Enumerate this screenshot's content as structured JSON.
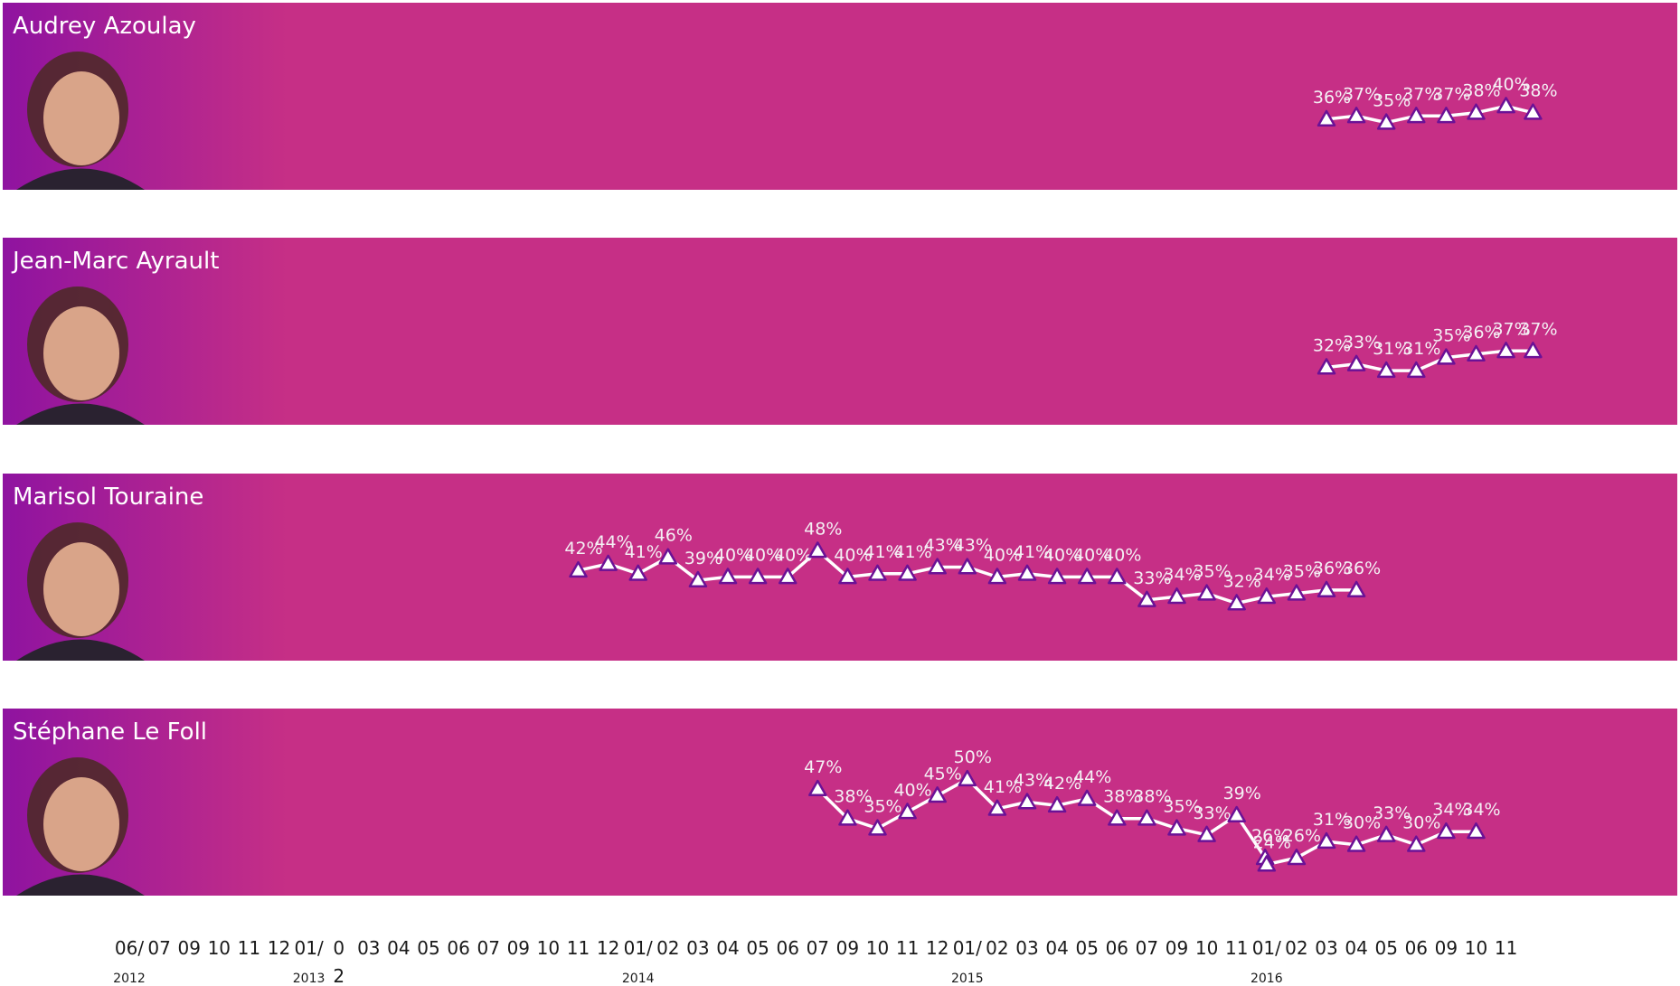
{
  "colors": {
    "panel_base": "#c62f86",
    "panel_left": "#8f13a0",
    "marker_stroke": "#6b1196",
    "marker_fill": "#ffffff",
    "line": "#ffffff",
    "text": "#ffffff"
  },
  "chart_data": {
    "type": "line",
    "x_ticks": [
      {
        "id": "2012-06",
        "label": "06/",
        "year": "2012"
      },
      {
        "id": "2012-07",
        "label": "07"
      },
      {
        "id": "2012-09",
        "label": "09"
      },
      {
        "id": "2012-10",
        "label": "10"
      },
      {
        "id": "2012-11",
        "label": "11"
      },
      {
        "id": "2012-12",
        "label": "12"
      },
      {
        "id": "2013-01",
        "label": "01/",
        "year": "2013"
      },
      {
        "id": "2013-02",
        "label": "0",
        "label2": "2"
      },
      {
        "id": "2013-03",
        "label": "03"
      },
      {
        "id": "2013-04",
        "label": "04"
      },
      {
        "id": "2013-05",
        "label": "05"
      },
      {
        "id": "2013-06",
        "label": "06"
      },
      {
        "id": "2013-07",
        "label": "07"
      },
      {
        "id": "2013-09",
        "label": "09"
      },
      {
        "id": "2013-10",
        "label": "10"
      },
      {
        "id": "2013-11",
        "label": "11"
      },
      {
        "id": "2013-12",
        "label": "12"
      },
      {
        "id": "2014-01",
        "label": "01/",
        "year": "2014"
      },
      {
        "id": "2014-02",
        "label": "02"
      },
      {
        "id": "2014-03",
        "label": "03"
      },
      {
        "id": "2014-04",
        "label": "04"
      },
      {
        "id": "2014-05",
        "label": "05"
      },
      {
        "id": "2014-06",
        "label": "06"
      },
      {
        "id": "2014-07",
        "label": "07"
      },
      {
        "id": "2014-09",
        "label": "09"
      },
      {
        "id": "2014-10",
        "label": "10"
      },
      {
        "id": "2014-11",
        "label": "11"
      },
      {
        "id": "2014-12",
        "label": "12"
      },
      {
        "id": "2015-01",
        "label": "01/",
        "year": "2015"
      },
      {
        "id": "2015-02",
        "label": "02"
      },
      {
        "id": "2015-03",
        "label": "03"
      },
      {
        "id": "2015-04",
        "label": "04"
      },
      {
        "id": "2015-05",
        "label": "05"
      },
      {
        "id": "2015-06",
        "label": "06"
      },
      {
        "id": "2015-07",
        "label": "07"
      },
      {
        "id": "2015-09",
        "label": "09"
      },
      {
        "id": "2015-10",
        "label": "10"
      },
      {
        "id": "2015-11",
        "label": "11"
      },
      {
        "id": "2016-01",
        "label": "01/",
        "year": "2016"
      },
      {
        "id": "2016-02",
        "label": "02"
      },
      {
        "id": "2016-03",
        "label": "03"
      },
      {
        "id": "2016-04",
        "label": "04"
      },
      {
        "id": "2016-05",
        "label": "05"
      },
      {
        "id": "2016-06",
        "label": "06"
      },
      {
        "id": "2016-09",
        "label": "09"
      },
      {
        "id": "2016-10",
        "label": "10"
      },
      {
        "id": "2016-11",
        "label": "11"
      }
    ],
    "panels": [
      {
        "name": "Audrey Azoulay",
        "photo_icon": "person-photo-icon",
        "ylim": [
          20,
          55
        ],
        "points": [
          {
            "x": "2016-03",
            "y": 36
          },
          {
            "x": "2016-04",
            "y": 37
          },
          {
            "x": "2016-05",
            "y": 35
          },
          {
            "x": "2016-06",
            "y": 37
          },
          {
            "x": "2016-09",
            "y": 37
          },
          {
            "x": "2016-10",
            "y": 38
          },
          {
            "x": "2016-11",
            "y": 40
          },
          {
            "x": "2016-12",
            "y": 38
          }
        ]
      },
      {
        "name": "Jean-Marc Ayrault",
        "photo_icon": "person-photo-icon",
        "ylim": [
          20,
          55
        ],
        "points": [
          {
            "x": "2016-03",
            "y": 32
          },
          {
            "x": "2016-04",
            "y": 33
          },
          {
            "x": "2016-05",
            "y": 31
          },
          {
            "x": "2016-06",
            "y": 31
          },
          {
            "x": "2016-09",
            "y": 35
          },
          {
            "x": "2016-10",
            "y": 36
          },
          {
            "x": "2016-11",
            "y": 37
          },
          {
            "x": "2016-12",
            "y": 37
          }
        ]
      },
      {
        "name": "Marisol Touraine",
        "photo_icon": "person-photo-icon",
        "ylim": [
          20,
          55
        ],
        "points": [
          {
            "x": "2013-11",
            "y": 42
          },
          {
            "x": "2013-12",
            "y": 44
          },
          {
            "x": "2014-01",
            "y": 41
          },
          {
            "x": "2014-02",
            "y": 46
          },
          {
            "x": "2014-03",
            "y": 39
          },
          {
            "x": "2014-04",
            "y": 40
          },
          {
            "x": "2014-05",
            "y": 40
          },
          {
            "x": "2014-06",
            "y": 40
          },
          {
            "x": "2014-07",
            "y": 48
          },
          {
            "x": "2014-09",
            "y": 40
          },
          {
            "x": "2014-10",
            "y": 41
          },
          {
            "x": "2014-11",
            "y": 41
          },
          {
            "x": "2014-12",
            "y": 43
          },
          {
            "x": "2015-01",
            "y": 43
          },
          {
            "x": "2015-02",
            "y": 40
          },
          {
            "x": "2015-03",
            "y": 41
          },
          {
            "x": "2015-04",
            "y": 40
          },
          {
            "x": "2015-05",
            "y": 40
          },
          {
            "x": "2015-06",
            "y": 40
          },
          {
            "x": "2015-07",
            "y": 33
          },
          {
            "x": "2015-09",
            "y": 34
          },
          {
            "x": "2015-10",
            "y": 35
          },
          {
            "x": "2015-11",
            "y": 32
          },
          {
            "x": "2016-01",
            "y": 34
          },
          {
            "x": "2016-02",
            "y": 35
          },
          {
            "x": "2016-03",
            "y": 36
          },
          {
            "x": "2016-04",
            "y": 36
          }
        ]
      },
      {
        "name": "Stéphane Le Foll",
        "photo_icon": "person-photo-icon",
        "ylim": [
          20,
          55
        ],
        "points": [
          {
            "x": "2014-07",
            "y": 47
          },
          {
            "x": "2014-09",
            "y": 38
          },
          {
            "x": "2014-10",
            "y": 35
          },
          {
            "x": "2014-11",
            "y": 40
          },
          {
            "x": "2014-12",
            "y": 45
          },
          {
            "x": "2015-01",
            "y": 50
          },
          {
            "x": "2015-02",
            "y": 41
          },
          {
            "x": "2015-03",
            "y": 43
          },
          {
            "x": "2015-04",
            "y": 42
          },
          {
            "x": "2015-05",
            "y": 44
          },
          {
            "x": "2015-06",
            "y": 38
          },
          {
            "x": "2015-07",
            "y": 38
          },
          {
            "x": "2015-09",
            "y": 35
          },
          {
            "x": "2015-10",
            "y": 33
          },
          {
            "x": "2015-11",
            "y": 39
          },
          {
            "x": "2015-12",
            "y": 26
          },
          {
            "x": "2016-01",
            "y": 24
          },
          {
            "x": "2016-02",
            "y": 26
          },
          {
            "x": "2016-03",
            "y": 31
          },
          {
            "x": "2016-04",
            "y": 30
          },
          {
            "x": "2016-05",
            "y": 33
          },
          {
            "x": "2016-06",
            "y": 30
          },
          {
            "x": "2016-09",
            "y": 34
          },
          {
            "x": "2016-10",
            "y": 34
          }
        ]
      }
    ]
  }
}
